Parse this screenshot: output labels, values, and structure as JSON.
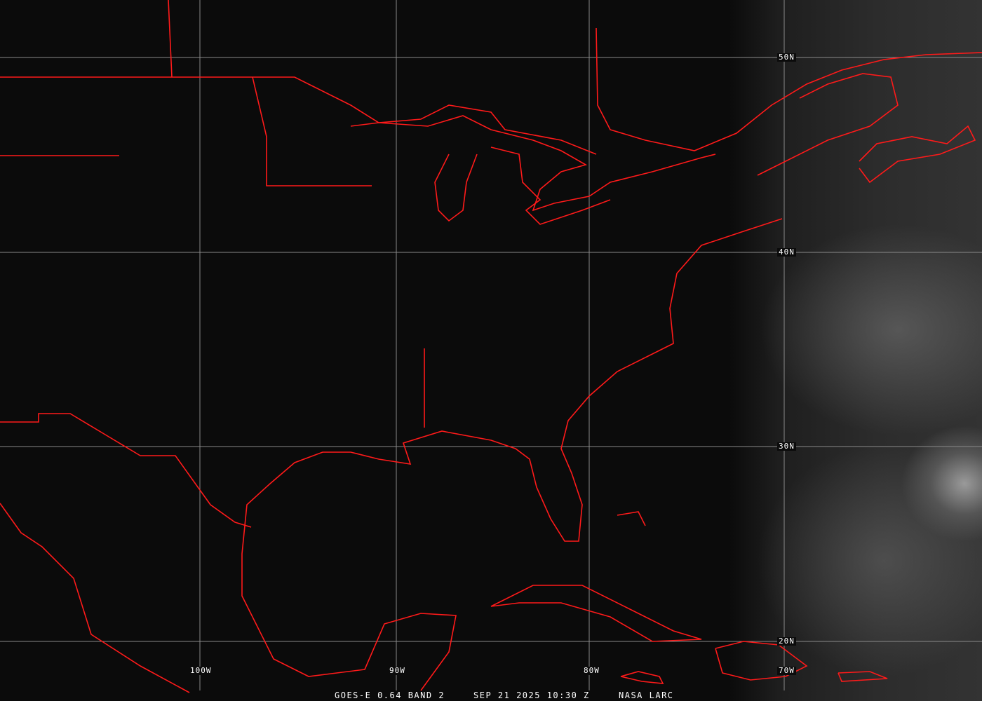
{
  "caption": {
    "satellite": "GOES-E 0.64 BAND 2",
    "datetime": "SEP 21 2025 10:30 Z",
    "credit": "NASA LARC"
  },
  "grid": {
    "longitudes": [
      "100W",
      "90W",
      "80W",
      "70W"
    ],
    "latitudes": [
      "50N",
      "40N",
      "30N",
      "20N"
    ]
  },
  "colors": {
    "boundaries": "#ff1a1a",
    "grid": "#8a8a8a",
    "background": "#0b0b0b"
  }
}
